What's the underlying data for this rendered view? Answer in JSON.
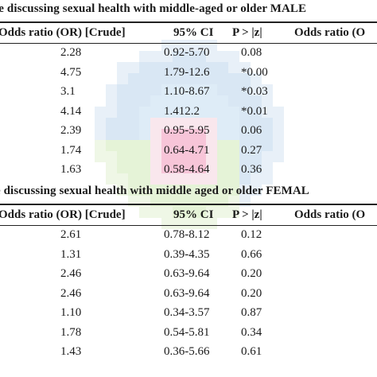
{
  "table_male": {
    "caption": "le discussing sexual health with middle-aged or older MALE",
    "headers": [
      "Odds ratio (OR) [Crude]",
      "95% CI",
      "P > |z|",
      "Odds ratio (O"
    ],
    "rows": [
      [
        "2.28",
        "0.92-5.70",
        "0.08"
      ],
      [
        "4.75",
        "1.79-12.6",
        "*0.00"
      ],
      [
        "3.1",
        "1.10-8.67",
        "*0.03"
      ],
      [
        "4.14",
        "1.412.2",
        "*0.01"
      ],
      [
        "2.39",
        "0.95-5.95",
        "0.06"
      ],
      [
        "1.74",
        "0.64-4.71",
        "0.27"
      ],
      [
        "1.63",
        "0.58-4.64",
        "0.36"
      ]
    ]
  },
  "table_female": {
    "caption": "e discussing sexual health with middle aged or older FEMAL",
    "headers": [
      "Odds ratio (OR) [Crude]",
      "95% CI",
      "P > |z|",
      "Odds ratio (O"
    ],
    "rows": [
      [
        "2.61",
        "0.78-8.12",
        "0.12"
      ],
      [
        "1.31",
        "0.39-4.35",
        "0.66"
      ],
      [
        "2.46",
        "0.63-9.64",
        "0.20"
      ],
      [
        "2.46",
        "0.63-9.64",
        "0.20"
      ],
      [
        "1.10",
        "0.34-3.57",
        "0.87"
      ],
      [
        "1.78",
        "0.54-5.81",
        "0.34"
      ],
      [
        "1.43",
        "0.36-5.66",
        "0.61"
      ]
    ]
  },
  "watermark": {
    "colors": [
      "#dbe8f4",
      "#c7dcef",
      "#d9edc4",
      "#f7dce6",
      "#f4aac6",
      "#cfe3f4"
    ]
  }
}
